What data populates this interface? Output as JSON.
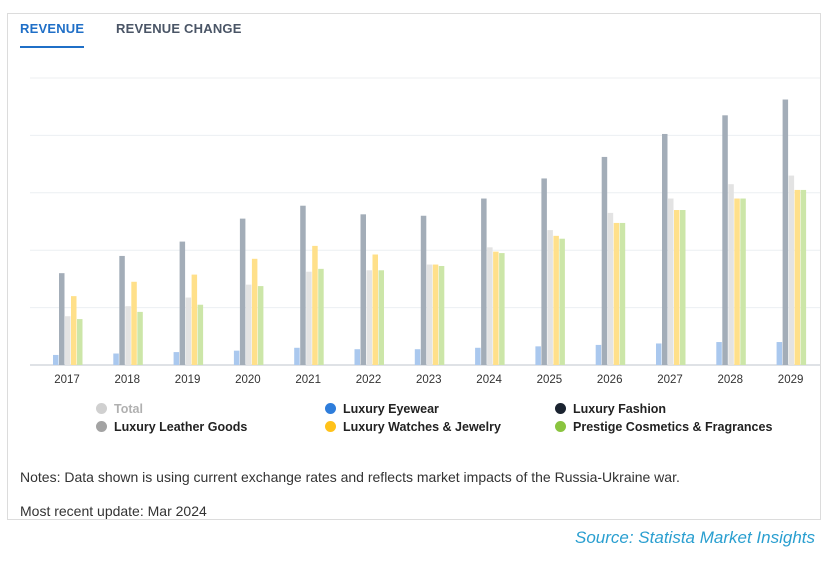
{
  "tabs": [
    {
      "label": "REVENUE",
      "active": true
    },
    {
      "label": "REVENUE CHANGE",
      "active": false
    }
  ],
  "colors": {
    "accent": "#1f6fc7",
    "source": "#2a9fd0",
    "total": "#e3e3e3",
    "leather": "#a3adb8",
    "eyewear": "#aac8ee",
    "fashion": "#1a2330",
    "watches": "#ffe08a",
    "cosmetics": "#cce6a8"
  },
  "chart_data": {
    "type": "bar",
    "title": "",
    "xlabel": "",
    "ylabel": "",
    "ylim": [
      0,
      100
    ],
    "categories": [
      "2017",
      "2018",
      "2019",
      "2020",
      "2021",
      "2022",
      "2023",
      "2024",
      "2025",
      "2026",
      "2027",
      "2028",
      "2029"
    ],
    "series": [
      {
        "name": "Luxury Eyewear",
        "color": "#aac8ee",
        "values": [
          3.5,
          4,
          4.5,
          5,
          6,
          5.5,
          5.5,
          6,
          6.5,
          7,
          7.5,
          8,
          8
        ]
      },
      {
        "name": "Luxury Leather Goods",
        "color": "#a3adb8",
        "values": [
          32,
          38,
          43,
          51,
          55.5,
          52.5,
          52,
          58,
          65,
          72.5,
          80.5,
          87,
          92.5
        ]
      },
      {
        "name": "Total",
        "color": "#e3e3e3",
        "values": [
          17,
          20.5,
          23.5,
          28,
          32.5,
          33,
          35,
          41,
          47,
          53,
          58,
          63,
          66
        ]
      },
      {
        "name": "Luxury Watches & Jewelry",
        "color": "#ffe08a",
        "values": [
          24,
          29,
          31.5,
          37,
          41.5,
          38.5,
          35,
          39.5,
          45,
          49.5,
          54,
          58,
          61
        ]
      },
      {
        "name": "Prestige Cosmetics & Fragrances",
        "color": "#cce6a8",
        "values": [
          16,
          18.5,
          21,
          27.5,
          33.5,
          33,
          34.5,
          39,
          44,
          49.5,
          54,
          58,
          61
        ]
      }
    ],
    "grid": true,
    "legend_position": "bottom"
  },
  "legend": [
    {
      "label": "Total",
      "color": "#d0d0d0",
      "muted": true
    },
    {
      "label": "Luxury Eyewear",
      "color": "#2e7ddb",
      "muted": false
    },
    {
      "label": "Luxury Fashion",
      "color": "#1a2330",
      "muted": false
    },
    {
      "label": "Luxury Leather Goods",
      "color": "#a3a3a3",
      "muted": false
    },
    {
      "label": "Luxury Watches & Jewelry",
      "color": "#ffc21a",
      "muted": false
    },
    {
      "label": "Prestige Cosmetics & Fragrances",
      "color": "#8ac43f",
      "muted": false
    }
  ],
  "notes": "Notes: Data shown is using current exchange rates and reflects market impacts of the Russia-Ukraine war.",
  "update": "Most recent update: Mar 2024",
  "source": "Source: Statista Market Insights"
}
